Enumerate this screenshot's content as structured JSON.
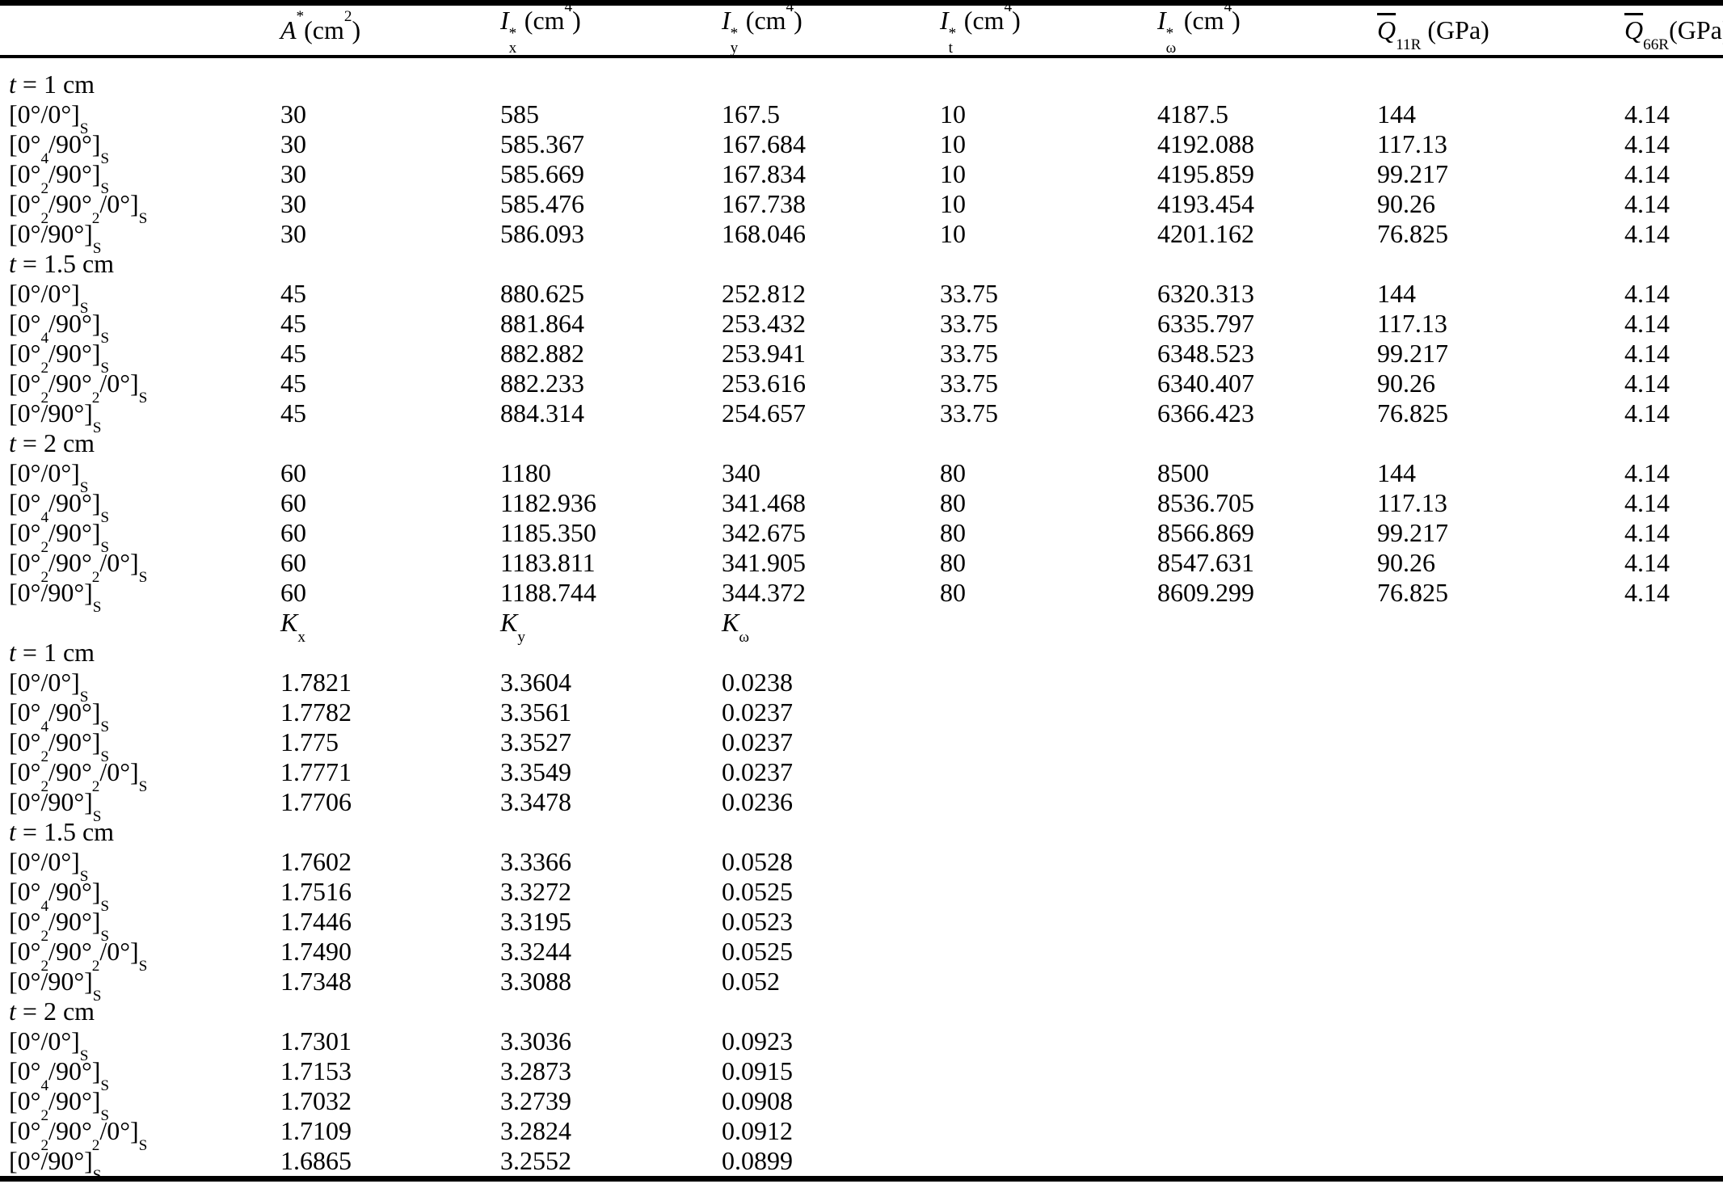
{
  "table": {
    "headers": [
      "*A*^{*}(cm^{2})",
      "*I*@{*|x} (cm^{4})",
      "*I*@{*|y} (cm^{4})",
      "*I*@{*|t} (cm^{4})",
      "*I*@{*|ω} (cm^{4})",
      "O{*Q*}_{11R} (GPa)",
      "O{*Q*}_{66R}(GPa)"
    ],
    "part1": {
      "groups": [
        {
          "label": "*t* = 1 cm",
          "rows": [
            {
              "layup": "[0°/0°]_{S}",
              "values": [
                "30",
                "585",
                "167.5",
                "10",
                "4187.5",
                "144",
                "4.14"
              ]
            },
            {
              "layup": "[0°_{4}/90°]_{S}",
              "values": [
                "30",
                "585.367",
                "167.684",
                "10",
                "4192.088",
                "117.13",
                "4.14"
              ]
            },
            {
              "layup": "[0°_{2}/90°]_{S}",
              "values": [
                "30",
                "585.669",
                "167.834",
                "10",
                "4195.859",
                "99.217",
                "4.14"
              ]
            },
            {
              "layup": "[0°_{2}/90°_{2}/0°]_{S}",
              "values": [
                "30",
                "585.476",
                "167.738",
                "10",
                "4193.454",
                "90.26",
                "4.14"
              ]
            },
            {
              "layup": "[0°/90°]_{S}",
              "values": [
                "30",
                "586.093",
                "168.046",
                "10",
                "4201.162",
                "76.825",
                "4.14"
              ]
            }
          ]
        },
        {
          "label": "*t* = 1.5 cm",
          "rows": [
            {
              "layup": "[0°/0°]_{S}",
              "values": [
                "45",
                "880.625",
                "252.812",
                "33.75",
                "6320.313",
                "144",
                "4.14"
              ]
            },
            {
              "layup": "[0°_{4}/90°]_{S}",
              "values": [
                "45",
                "881.864",
                "253.432",
                "33.75",
                "6335.797",
                "117.13",
                "4.14"
              ]
            },
            {
              "layup": "[0°_{2}/90°]_{S}",
              "values": [
                "45",
                "882.882",
                "253.941",
                "33.75",
                "6348.523",
                "99.217",
                "4.14"
              ]
            },
            {
              "layup": "[0°_{2}/90°_{2}/0°]_{S}",
              "values": [
                "45",
                "882.233",
                "253.616",
                "33.75",
                "6340.407",
                "90.26",
                "4.14"
              ]
            },
            {
              "layup": "[0°/90°]_{S}",
              "values": [
                "45",
                "884.314",
                "254.657",
                "33.75",
                "6366.423",
                "76.825",
                "4.14"
              ]
            }
          ]
        },
        {
          "label": "*t* = 2 cm",
          "rows": [
            {
              "layup": "[0°/0°]_{S}",
              "values": [
                "60",
                "1180",
                "340",
                "80",
                "8500",
                "144",
                "4.14"
              ]
            },
            {
              "layup": "[0°_{4}/90°]_{S}",
              "values": [
                "60",
                "1182.936",
                "341.468",
                "80",
                "8536.705",
                "117.13",
                "4.14"
              ]
            },
            {
              "layup": "[0°_{2}/90°]_{S}",
              "values": [
                "60",
                "1185.350",
                "342.675",
                "80",
                "8566.869",
                "99.217",
                "4.14"
              ]
            },
            {
              "layup": "[0°_{2}/90°_{2}/0°]_{S}",
              "values": [
                "60",
                "1183.811",
                "341.905",
                "80",
                "8547.631",
                "90.26",
                "4.14"
              ]
            },
            {
              "layup": "[0°/90°]_{S}",
              "values": [
                "60",
                "1188.744",
                "344.372",
                "80",
                "8609.299",
                "76.825",
                "4.14"
              ]
            }
          ]
        }
      ]
    },
    "part2": {
      "headers": [
        "*K*_{x}",
        "*K*_{y}",
        "*K*_{ω}"
      ],
      "groups": [
        {
          "label": "*t* = 1 cm",
          "rows": [
            {
              "layup": "[0°/0°]_{S}",
              "values": [
                "1.7821",
                "3.3604",
                "0.0238"
              ]
            },
            {
              "layup": "[0°_{4}/90°]_{S}",
              "values": [
                "1.7782",
                "3.3561",
                "0.0237"
              ]
            },
            {
              "layup": "[0°_{2}/90°]_{S}",
              "values": [
                "1.775",
                "3.3527",
                "0.0237"
              ]
            },
            {
              "layup": "[0°_{2}/90°_{2}/0°]_{S}",
              "values": [
                "1.7771",
                "3.3549",
                "0.0237"
              ]
            },
            {
              "layup": "[0°/90°]_{S}",
              "values": [
                "1.7706",
                "3.3478",
                "0.0236"
              ]
            }
          ]
        },
        {
          "label": "*t* = 1.5 cm",
          "rows": [
            {
              "layup": "[0°/0°]_{S}",
              "values": [
                "1.7602",
                "3.3366",
                "0.0528"
              ]
            },
            {
              "layup": "[0°_{4}/90°]_{S}",
              "values": [
                "1.7516",
                "3.3272",
                "0.0525"
              ]
            },
            {
              "layup": "[0°_{2}/90°]_{S}",
              "values": [
                "1.7446",
                "3.3195",
                "0.0523"
              ]
            },
            {
              "layup": "[0°_{2}/90°_{2}/0°]_{S}",
              "values": [
                "1.7490",
                "3.3244",
                "0.0525"
              ]
            },
            {
              "layup": "[0°/90°]_{S}",
              "values": [
                "1.7348",
                "3.3088",
                "0.052"
              ]
            }
          ]
        },
        {
          "label": "*t* = 2 cm",
          "rows": [
            {
              "layup": "[0°/0°]_{S}",
              "values": [
                "1.7301",
                "3.3036",
                "0.0923"
              ]
            },
            {
              "layup": "[0°_{4}/90°]_{S}",
              "values": [
                "1.7153",
                "3.2873",
                "0.0915"
              ]
            },
            {
              "layup": "[0°_{2}/90°]_{S}",
              "values": [
                "1.7032",
                "3.2739",
                "0.0908"
              ]
            },
            {
              "layup": "[0°_{2}/90°_{2}/0°]_{S}",
              "values": [
                "1.7109",
                "3.2824",
                "0.0912"
              ]
            },
            {
              "layup": "[0°/90°]_{S}",
              "values": [
                "1.6865",
                "3.2552",
                "0.0899"
              ]
            }
          ]
        }
      ]
    }
  }
}
